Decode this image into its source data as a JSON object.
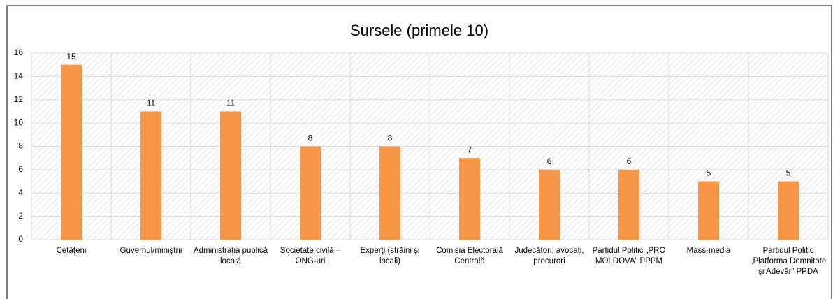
{
  "chart_data": {
    "type": "bar",
    "title": "Sursele (primele 10)",
    "categories": [
      "Cetăţeni",
      "Guvernul/miniştrii",
      "Administraţia publică locală",
      "Societate civilă – ONG-uri",
      "Experţi (străini şi locali)",
      "Comisia Electorală Centrală",
      "Judecători, avocaţi, procurori",
      "Partidul Politic „PRO MOLDOVA” PPPM",
      "Mass-media",
      "Partidul Politic „Platforma Demnitate şi Adevăr” PPDA"
    ],
    "values": [
      15,
      11,
      11,
      8,
      8,
      7,
      6,
      6,
      5,
      5
    ],
    "color": "#f79646",
    "ylim": [
      0,
      16
    ],
    "yticks": [
      0,
      2,
      4,
      6,
      8,
      10,
      12,
      14,
      16
    ],
    "grid": true
  }
}
